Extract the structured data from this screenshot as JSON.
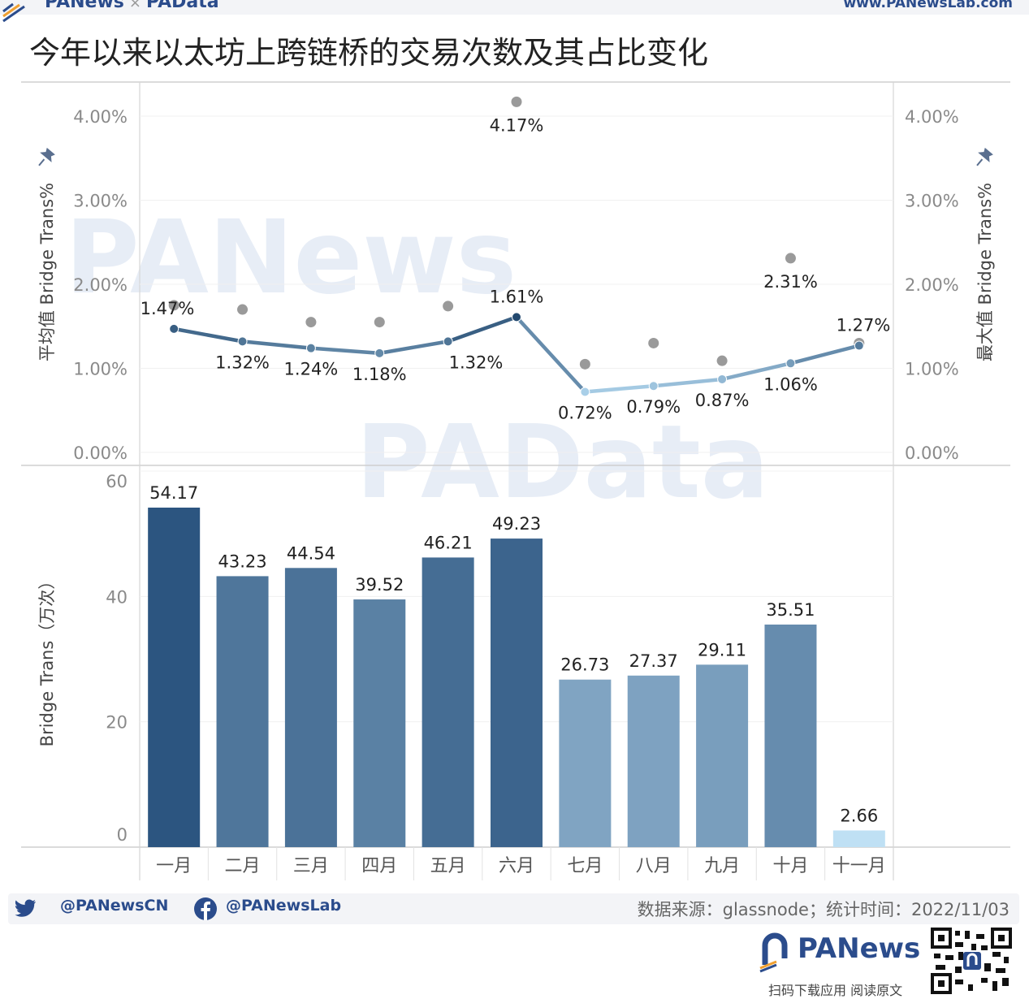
{
  "header": {
    "brand_left_a": "PANews",
    "brand_sep": "×",
    "brand_left_b": "PAData",
    "brand_right": "www.PANewsLab.com"
  },
  "title": "今年以来以太坊上跨链桥的交易次数及其占比变化",
  "watermarks": [
    "PANews",
    "PAData"
  ],
  "colors": {
    "line_dark": "#2f5a87",
    "line_light": "#a9cfe8",
    "max_dot": "#9a9a9a",
    "brand": "#2b4c8c"
  },
  "chart_data": [
    {
      "type": "line",
      "categories": [
        "一月",
        "二月",
        "三月",
        "四月",
        "五月",
        "六月",
        "七月",
        "八月",
        "九月",
        "十月",
        "十一月"
      ],
      "series": [
        {
          "name": "平均值 Bridge Trans%",
          "values": [
            1.47,
            1.32,
            1.24,
            1.18,
            1.32,
            1.61,
            0.72,
            0.79,
            0.87,
            1.06,
            1.27
          ],
          "labels": [
            "1.47%",
            "1.32%",
            "1.24%",
            "1.18%",
            "1.32%",
            "1.61%",
            "0.72%",
            "0.79%",
            "0.87%",
            "1.06%",
            "1.27%"
          ]
        },
        {
          "name": "最大值 Bridge Trans%",
          "values": [
            1.75,
            1.7,
            1.55,
            1.55,
            1.74,
            4.17,
            1.05,
            1.3,
            1.09,
            2.31,
            1.3
          ],
          "labels": [
            "",
            "",
            "",
            "",
            "",
            "4.17%",
            "",
            "",
            "",
            "2.31%",
            ""
          ]
        }
      ],
      "ylabel_left": "平均值 Bridge Trans%",
      "ylabel_right": "最大值 Bridge Trans%",
      "yticks": [
        "0.00%",
        "1.00%",
        "2.00%",
        "3.00%",
        "4.00%"
      ],
      "ylim": [
        0,
        4.4
      ]
    },
    {
      "type": "bar",
      "categories": [
        "一月",
        "二月",
        "三月",
        "四月",
        "五月",
        "六月",
        "七月",
        "八月",
        "九月",
        "十月",
        "十一月"
      ],
      "values": [
        54.17,
        43.23,
        44.54,
        39.52,
        46.21,
        49.23,
        26.73,
        27.37,
        29.11,
        35.51,
        2.66
      ],
      "labels": [
        "54.17",
        "43.23",
        "44.54",
        "39.52",
        "46.21",
        "49.23",
        "26.73",
        "27.37",
        "29.11",
        "35.51",
        "2.66"
      ],
      "ylabel": "Bridge Trans（万次）",
      "yticks": [
        "0",
        "20",
        "40",
        "60"
      ],
      "ylim": [
        0,
        60
      ]
    }
  ],
  "footer": {
    "twitter": "@PANewsCN",
    "facebook": "@PANewsLab",
    "source": "数据来源：glassnode；统计时间：2022/11/03",
    "logo": "PANews",
    "scan": "扫码下载应用 阅读原文"
  }
}
